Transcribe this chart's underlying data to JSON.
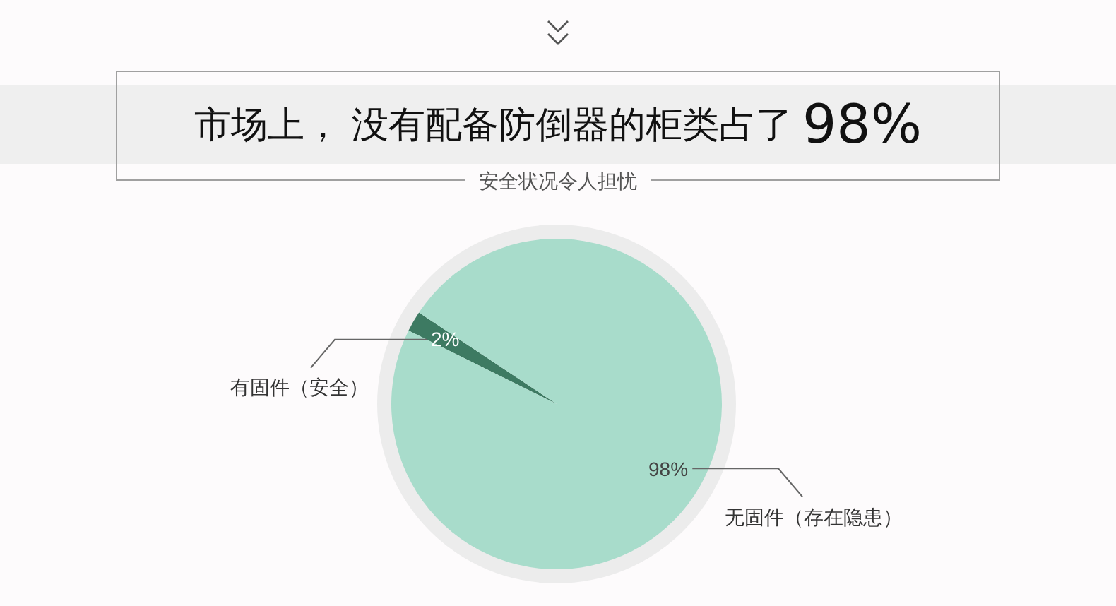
{
  "chart_data": {
    "type": "pie",
    "title": "市场上， 没有配备防倒器的柜类占了 98%",
    "subtitle": "安全状况令人担忧",
    "categories": [
      "有固件（安全）",
      "无固件（存在隐患）"
    ],
    "values": [
      2,
      98
    ],
    "colors": [
      "#3d7a62",
      "#a8dccb"
    ],
    "value_labels": [
      "2%",
      "98%"
    ]
  }
}
